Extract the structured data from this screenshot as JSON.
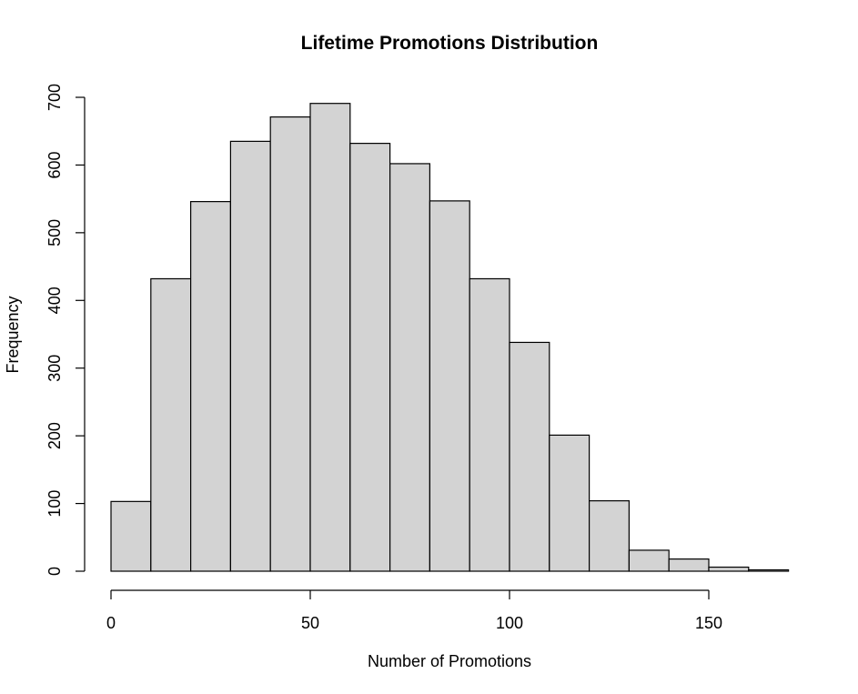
{
  "chart_data": {
    "type": "histogram",
    "title": "Lifetime Promotions Distribution",
    "xlabel": "Number of Promotions",
    "ylabel": "Frequency",
    "bin_edges": [
      0,
      10,
      20,
      30,
      40,
      50,
      60,
      70,
      80,
      90,
      100,
      110,
      120,
      130,
      140,
      150,
      160,
      170
    ],
    "values": [
      103,
      432,
      546,
      635,
      671,
      691,
      632,
      602,
      547,
      432,
      338,
      201,
      104,
      31,
      18,
      6,
      2
    ],
    "xlim": [
      0,
      170
    ],
    "ylim": [
      0,
      700
    ],
    "x_ticks": [
      0,
      50,
      100,
      150
    ],
    "y_ticks": [
      0,
      100,
      200,
      300,
      400,
      500,
      600,
      700
    ],
    "bar_color": "#d3d3d3",
    "edge_color": "#000000",
    "grid": false
  }
}
